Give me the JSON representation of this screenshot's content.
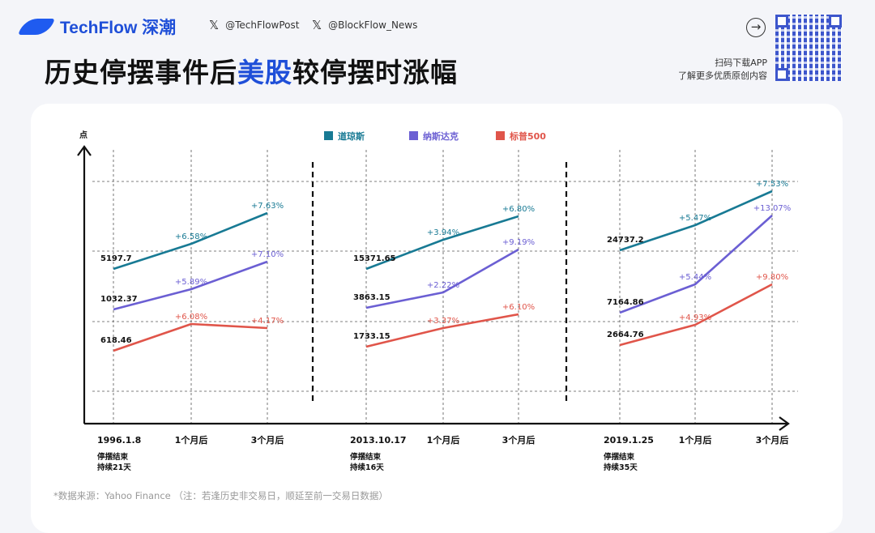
{
  "header": {
    "brand": "TechFlow 深潮",
    "social": [
      {
        "icon": "x-icon",
        "handle": "@TechFlowPost"
      },
      {
        "icon": "x-icon",
        "handle": "@BlockFlow_News"
      }
    ],
    "title_part1": "历史停摆事件后",
    "title_highlight": "美股",
    "title_part2": "较停摆时涨幅",
    "promo_line1": "扫码下载APP",
    "promo_line2": "了解更多优质原创内容",
    "accent": "#1f4fd8"
  },
  "chart_data": {
    "type": "line",
    "ylabel": "点",
    "legend_placement": "top",
    "grid": true,
    "series": [
      {
        "name": "道琼斯",
        "color": "#187a94"
      },
      {
        "name": "纳斯达克",
        "color": "#6b5fd3"
      },
      {
        "name": "标普500",
        "color": "#e0554a"
      }
    ],
    "groups": [
      {
        "date": "1996.1.8",
        "note1": "停摆结束",
        "note2": "持续21天",
        "categories": [
          "1996.1.8",
          "1个月后",
          "3个月后"
        ],
        "start": [
          "5197.7",
          "1032.37",
          "618.46"
        ],
        "changes": [
          [
            "+6.58%",
            "+7.63%"
          ],
          [
            "+5.89%",
            "+7.10%"
          ],
          [
            "+6.08%",
            "+4.17%"
          ]
        ]
      },
      {
        "date": "2013.10.17",
        "note1": "停摆结束",
        "note2": "持续16天",
        "categories": [
          "2013.10.17",
          "1个月后",
          "3个月后"
        ],
        "start": [
          "15371.65",
          "3863.15",
          "1733.15"
        ],
        "changes": [
          [
            "+3.94%",
            "+6.80%"
          ],
          [
            "+2.22%",
            "+9.19%"
          ],
          [
            "+3.37%",
            "+6.10%"
          ]
        ]
      },
      {
        "date": "2019.1.25",
        "note1": "停摆结束",
        "note2": "持续35天",
        "categories": [
          "2019.1.25",
          "1个月后",
          "3个月后"
        ],
        "start": [
          "24737.2",
          "7164.86",
          "2664.76"
        ],
        "changes": [
          [
            "+5.47%",
            "+7.53%"
          ],
          [
            "+5.44%",
            "+13.07%"
          ],
          [
            "+4.93%",
            "+9.80%"
          ]
        ]
      }
    ]
  },
  "footer": "*数据来源：Yahoo Finance （注：若逢历史非交易日，顺延至前一交易日数据）"
}
